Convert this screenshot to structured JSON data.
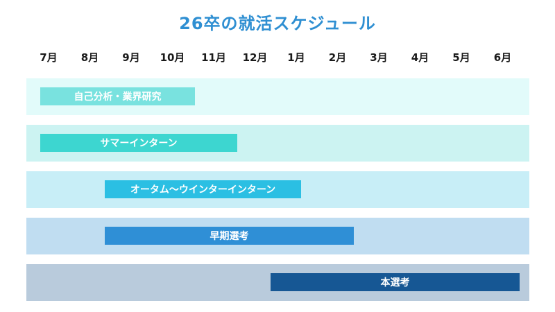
{
  "title": "26卒の就活スケジュール",
  "months": [
    "7月",
    "8月",
    "9月",
    "10月",
    "11月",
    "12月",
    "1月",
    "2月",
    "3月",
    "4月",
    "5月",
    "6月"
  ],
  "rows": [
    {
      "label": "自己分析・業界研究",
      "start_month": "7月",
      "end_month": "10月",
      "lane_color": "#e2fbfa",
      "bar_color": "#79e2df"
    },
    {
      "label": "サマーインターン",
      "start_month": "7月",
      "end_month": "11月",
      "lane_color": "#ccf3f2",
      "bar_color": "#3dd6d0"
    },
    {
      "label": "オータム〜ウインターインターン",
      "start_month": "9月",
      "end_month": "1月",
      "lane_color": "#c8eef7",
      "bar_color": "#2bbfe3"
    },
    {
      "label": "早期選考",
      "start_month": "9月",
      "end_month": "2月",
      "lane_color": "#c0ddf1",
      "bar_color": "#2f8fd6"
    },
    {
      "label": "本選考",
      "start_month": "12月",
      "end_month": "6月",
      "lane_color": "#b9cbdc",
      "bar_color": "#165794"
    }
  ]
}
